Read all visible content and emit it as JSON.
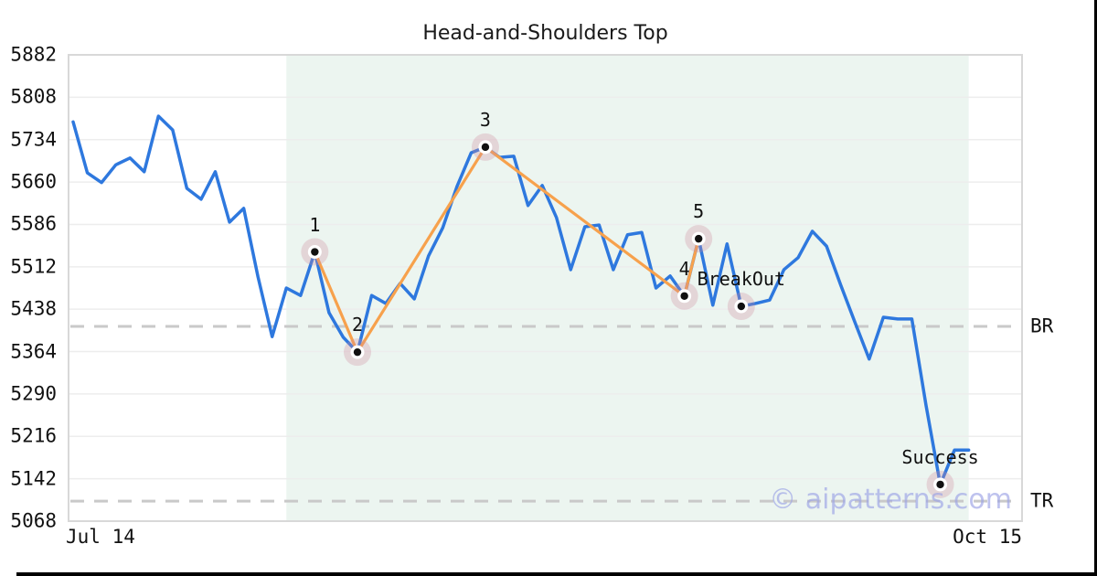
{
  "page": {
    "title": "Head-and-Shoulders Top",
    "watermark": "© aipatterns.com"
  },
  "colors": {
    "price_line": "#2E78DE",
    "pattern_line": "#F7A14C",
    "marker_dot": "#111111",
    "marker_ring": "#ffffff",
    "marker_halo": "rgba(205,140,160,0.30)",
    "shaded_region": "#ECF5F0",
    "gridline": "#EDEDED",
    "plot_border": "#D8D8D8",
    "dashed_line": "#C9C9C9",
    "watermark": "#9CA3E6",
    "text": "#111111"
  },
  "chart_data": {
    "type": "line",
    "title": "Head-and-Shoulders Top",
    "xlabel": "",
    "ylabel": "",
    "grid": "horizontal",
    "legend_position": "none",
    "ylim": [
      5068,
      5882
    ],
    "y_ticks": [
      5882,
      5808,
      5734,
      5660,
      5586,
      5512,
      5438,
      5364,
      5290,
      5216,
      5142,
      5068
    ],
    "x_axis": {
      "start_label": "Jul 14",
      "end_label": "Oct 15"
    },
    "series": [
      {
        "name": "price",
        "values": [
          5765,
          5676,
          5659,
          5690,
          5702,
          5678,
          5775,
          5751,
          5649,
          5630,
          5678,
          5590,
          5614,
          5495,
          5390,
          5475,
          5462,
          5538,
          5432,
          5389,
          5363,
          5462,
          5448,
          5483,
          5456,
          5531,
          5580,
          5652,
          5711,
          5721,
          5703,
          5705,
          5619,
          5654,
          5598,
          5507,
          5582,
          5585,
          5507,
          5568,
          5572,
          5475,
          5496,
          5461,
          5561,
          5445,
          5552,
          5443,
          5448,
          5454,
          5507,
          5528,
          5574,
          5548,
          5480,
          5415,
          5351,
          5424,
          5421,
          5421,
          5270,
          5132,
          5192,
          5192
        ]
      },
      {
        "name": "head-and-shoulders pattern",
        "points_by_index": [
          [
            17,
            5538
          ],
          [
            20,
            5363
          ],
          [
            29,
            5721
          ],
          [
            43,
            5461
          ],
          [
            44,
            5561
          ]
        ]
      }
    ],
    "markers": [
      {
        "label": "1",
        "index": 17,
        "value": 5538
      },
      {
        "label": "2",
        "index": 20,
        "value": 5363
      },
      {
        "label": "3",
        "index": 29,
        "value": 5721
      },
      {
        "label": "4",
        "index": 43,
        "value": 5461
      },
      {
        "label": "5",
        "index": 44,
        "value": 5561
      },
      {
        "label": "BreakOut",
        "index": 47,
        "value": 5443
      },
      {
        "label": "Success",
        "index": 61,
        "value": 5132
      }
    ],
    "hlines": [
      {
        "label": "BR",
        "value": 5408
      },
      {
        "label": "TR",
        "value": 5103
      }
    ],
    "shaded_region": {
      "start_index": 15,
      "end_index": 63
    }
  }
}
